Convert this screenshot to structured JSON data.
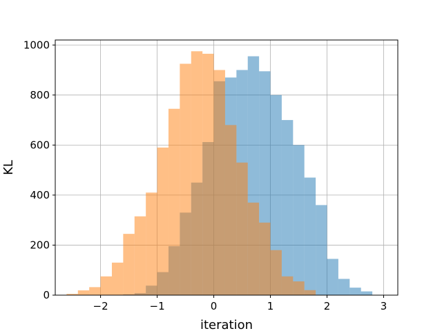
{
  "chart_data": {
    "type": "bar",
    "xlabel": "iteration",
    "ylabel": "KL",
    "xlim": [
      -2.8,
      3.25
    ],
    "ylim": [
      0,
      1020
    ],
    "grid": true,
    "x_ticks": [
      -2,
      -1,
      0,
      1,
      2,
      3
    ],
    "x_tick_labels": [
      "−2",
      "−1",
      "0",
      "1",
      "2",
      "3"
    ],
    "y_ticks": [
      0,
      200,
      400,
      600,
      800,
      1000
    ],
    "y_tick_labels": [
      "0",
      "200",
      "400",
      "600",
      "800",
      "1000"
    ],
    "series": [
      {
        "color": "#1f77b4",
        "opacity": 0.5,
        "bin_edges": [
          -1.6,
          -1.4,
          -1.2,
          -1.0,
          -0.8,
          -0.6,
          -0.4,
          -0.2,
          0.0,
          0.2,
          0.4,
          0.6,
          0.8,
          1.0,
          1.2,
          1.4,
          1.6,
          1.8,
          2.0,
          2.2,
          2.4,
          2.6,
          2.8
        ],
        "counts": [
          3,
          8,
          38,
          92,
          196,
          330,
          450,
          612,
          855,
          870,
          900,
          955,
          895,
          800,
          700,
          600,
          470,
          360,
          145,
          65,
          30,
          15
        ]
      },
      {
        "color": "#ff7f0e",
        "opacity": 0.5,
        "bin_edges": [
          -2.6,
          -2.4,
          -2.2,
          -2.0,
          -1.8,
          -1.6,
          -1.4,
          -1.2,
          -1.0,
          -0.8,
          -0.6,
          -0.4,
          -0.2,
          0.0,
          0.2,
          0.4,
          0.6,
          0.8,
          1.0,
          1.2,
          1.4,
          1.6,
          1.8
        ],
        "counts": [
          5,
          19,
          32,
          75,
          130,
          245,
          315,
          410,
          590,
          745,
          925,
          975,
          965,
          900,
          680,
          530,
          370,
          290,
          180,
          75,
          55,
          20
        ]
      }
    ]
  }
}
